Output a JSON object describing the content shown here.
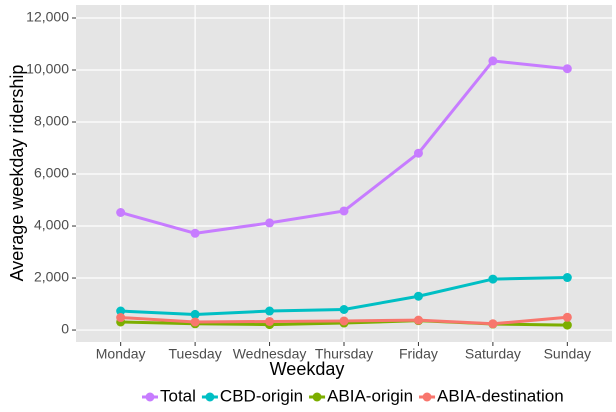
{
  "chart_data": {
    "type": "line",
    "x_label": "Weekday",
    "y_label": "Average weekday ridership",
    "categories": [
      "Monday",
      "Tuesday",
      "Wednesday",
      "Thursday",
      "Friday",
      "Saturday",
      "Sunday"
    ],
    "series": [
      {
        "name": "Total",
        "color": "#C77CFF",
        "values": [
          4520,
          3720,
          4120,
          4580,
          6800,
          10350,
          10050
        ]
      },
      {
        "name": "CBD-origin",
        "color": "#00BFC4",
        "values": [
          730,
          600,
          730,
          790,
          1300,
          1960,
          2020
        ]
      },
      {
        "name": "ABIA-origin",
        "color": "#7CAE00",
        "values": [
          310,
          240,
          210,
          270,
          360,
          230,
          190
        ]
      },
      {
        "name": "ABIA-destination",
        "color": "#F8766D",
        "values": [
          480,
          310,
          330,
          350,
          380,
          240,
          490
        ]
      }
    ],
    "ylim": [
      -460,
      12500
    ],
    "yticks": [
      0,
      {
        "value": 2000,
        "label": "2,000"
      },
      {
        "value": 4000,
        "label": "4,000"
      },
      {
        "value": 6000,
        "label": "6,000"
      },
      {
        "value": 8000,
        "label": "8,000"
      },
      {
        "value": 10000,
        "label": "10,000"
      },
      {
        "value": 12000,
        "label": "12,000"
      }
    ],
    "grid": true,
    "legend": "bottom"
  }
}
